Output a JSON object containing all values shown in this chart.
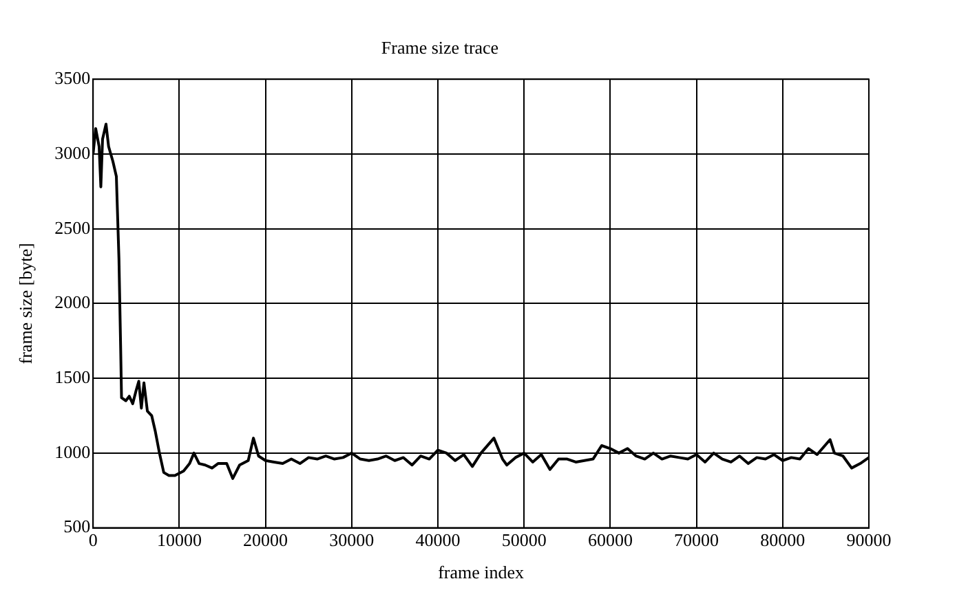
{
  "chart_data": {
    "type": "line",
    "title": "Frame size trace",
    "xlabel": "frame index",
    "ylabel": "frame size [byte]",
    "xlim": [
      0,
      90000
    ],
    "xticks": [
      0,
      10000,
      20000,
      30000,
      40000,
      50000,
      60000,
      70000,
      80000,
      90000
    ],
    "ylim": [
      500,
      3500
    ],
    "yticks": [
      500,
      1000,
      1500,
      2000,
      2500,
      3000,
      3500
    ],
    "grid": true,
    "legend": false,
    "marker": "none",
    "line_style": "solid",
    "x": [
      0,
      300,
      700,
      900,
      1100,
      1500,
      1800,
      2300,
      2700,
      3000,
      3200,
      3300,
      3800,
      4200,
      4600,
      5000,
      5300,
      5600,
      5900,
      6300,
      6800,
      7200,
      7700,
      8200,
      8800,
      9500,
      10500,
      11200,
      11700,
      12300,
      13000,
      13800,
      14500,
      15500,
      16200,
      17000,
      18000,
      18600,
      19200,
      20000,
      21000,
      22000,
      23000,
      24000,
      25000,
      26000,
      27000,
      28000,
      29000,
      30000,
      31000,
      32000,
      33000,
      34000,
      35000,
      36000,
      37000,
      38000,
      39000,
      40000,
      41000,
      42000,
      43000,
      44000,
      45000,
      46500,
      47500,
      48000,
      49000,
      50000,
      51000,
      52000,
      53000,
      54000,
      55000,
      56000,
      57000,
      58000,
      59000,
      60000,
      61000,
      62000,
      63000,
      64000,
      65000,
      66000,
      67000,
      68000,
      69000,
      70000,
      71000,
      72000,
      73000,
      74000,
      75000,
      76000,
      77000,
      78000,
      79000,
      80000,
      81000,
      82000,
      83000,
      84000,
      85500,
      86000,
      87000,
      88000,
      89000,
      90000
    ],
    "series": [
      {
        "color": "#000000",
        "values": [
          3000,
          3170,
          3050,
          2780,
          3100,
          3200,
          3050,
          2950,
          2850,
          2300,
          1700,
          1370,
          1350,
          1380,
          1330,
          1420,
          1480,
          1300,
          1470,
          1280,
          1250,
          1150,
          1000,
          870,
          850,
          850,
          880,
          930,
          1000,
          930,
          920,
          900,
          930,
          930,
          830,
          920,
          950,
          1100,
          980,
          950,
          940,
          930,
          960,
          930,
          970,
          960,
          980,
          960,
          970,
          1000,
          960,
          950,
          960,
          980,
          950,
          970,
          920,
          980,
          960,
          1020,
          1000,
          950,
          990,
          910,
          1000,
          1100,
          960,
          920,
          970,
          1000,
          940,
          990,
          890,
          960,
          960,
          940,
          950,
          960,
          1050,
          1030,
          1000,
          1030,
          980,
          960,
          1000,
          960,
          980,
          970,
          960,
          990,
          940,
          1000,
          960,
          940,
          980,
          930,
          970,
          960,
          990,
          950,
          970,
          960,
          1030,
          990,
          1090,
          1000,
          980,
          900,
          930,
          970
        ]
      }
    ]
  }
}
